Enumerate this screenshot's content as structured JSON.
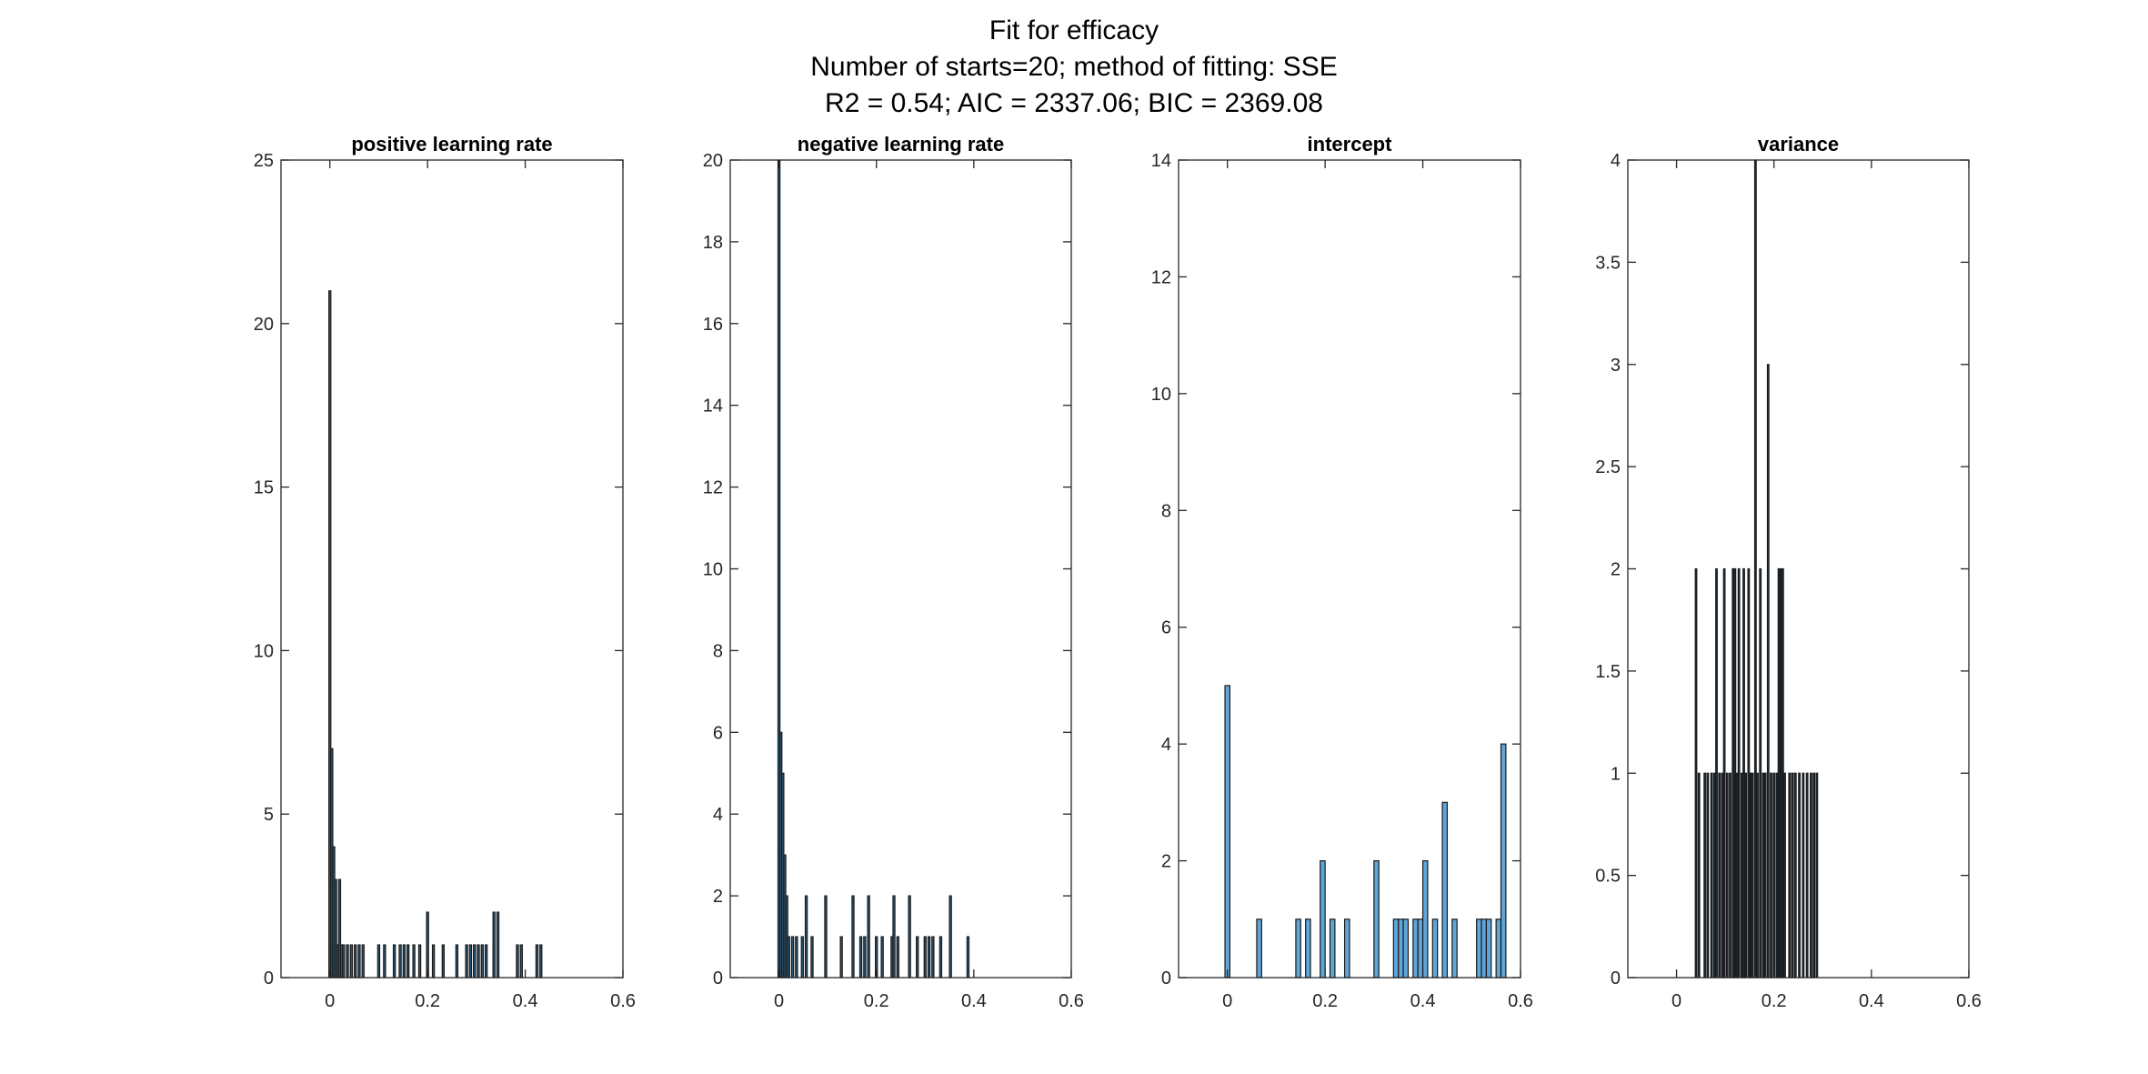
{
  "figure": {
    "title_lines": [
      "Fit for efficacy",
      "Number of starts=20; method of fitting: SSE",
      "R2 = 0.54; AIC = 2337.06; BIC = 2369.08"
    ]
  },
  "chart_data": [
    {
      "type": "bar",
      "title": "positive learning rate",
      "xlabel": "",
      "ylabel": "",
      "xlim": [
        -0.1,
        0.6
      ],
      "ylim": [
        0,
        25
      ],
      "xticks": [
        0,
        0.2,
        0.4,
        0.6
      ],
      "yticks": [
        0,
        5,
        10,
        15,
        20,
        25
      ],
      "xtick_labels": [
        "0",
        "0.2",
        "0.4",
        "0.6"
      ],
      "ytick_labels": [
        "0",
        "5",
        "10",
        "15",
        "20",
        "25"
      ],
      "bar_width": 0.004,
      "fill": "#2f5f7f",
      "grid": false,
      "x": [
        0.0,
        0.004,
        0.008,
        0.012,
        0.016,
        0.02,
        0.024,
        0.028,
        0.036,
        0.044,
        0.052,
        0.06,
        0.068,
        0.1,
        0.112,
        0.132,
        0.144,
        0.152,
        0.16,
        0.172,
        0.184,
        0.2,
        0.212,
        0.232,
        0.26,
        0.28,
        0.288,
        0.296,
        0.304,
        0.312,
        0.32,
        0.336,
        0.344,
        0.384,
        0.392,
        0.424,
        0.432
      ],
      "values": [
        21,
        7,
        4,
        3,
        1,
        3,
        1,
        1,
        1,
        1,
        1,
        1,
        1,
        1,
        1,
        1,
        1,
        1,
        1,
        1,
        1,
        2,
        1,
        1,
        1,
        1,
        1,
        1,
        1,
        1,
        1,
        2,
        2,
        1,
        1,
        1,
        1
      ]
    },
    {
      "type": "bar",
      "title": "negative learning rate",
      "xlabel": "",
      "ylabel": "",
      "xlim": [
        -0.1,
        0.6
      ],
      "ylim": [
        0,
        20
      ],
      "xticks": [
        0,
        0.2,
        0.4,
        0.6
      ],
      "yticks": [
        0,
        2,
        4,
        6,
        8,
        10,
        12,
        14,
        16,
        18,
        20
      ],
      "xtick_labels": [
        "0",
        "0.2",
        "0.4",
        "0.6"
      ],
      "ytick_labels": [
        "0",
        "2",
        "4",
        "6",
        "8",
        "10",
        "12",
        "14",
        "16",
        "18",
        "20"
      ],
      "bar_width": 0.004,
      "fill": "#2f5f7f",
      "grid": false,
      "x": [
        0.0,
        0.004,
        0.008,
        0.012,
        0.016,
        0.02,
        0.028,
        0.036,
        0.048,
        0.056,
        0.068,
        0.096,
        0.128,
        0.152,
        0.168,
        0.176,
        0.184,
        0.2,
        0.212,
        0.232,
        0.236,
        0.244,
        0.268,
        0.284,
        0.3,
        0.308,
        0.316,
        0.332,
        0.352,
        0.388
      ],
      "values": [
        20,
        6,
        5,
        3,
        2,
        1,
        1,
        1,
        1,
        2,
        1,
        2,
        1,
        2,
        1,
        1,
        2,
        1,
        1,
        1,
        2,
        1,
        2,
        1,
        1,
        1,
        1,
        1,
        2,
        1
      ]
    },
    {
      "type": "bar",
      "title": "intercept",
      "xlabel": "",
      "ylabel": "",
      "xlim": [
        -0.1,
        0.6
      ],
      "ylim": [
        0,
        14
      ],
      "xticks": [
        0,
        0.2,
        0.4,
        0.6
      ],
      "yticks": [
        0,
        2,
        4,
        6,
        8,
        10,
        12,
        14
      ],
      "xtick_labels": [
        "0",
        "0.2",
        "0.4",
        "0.6"
      ],
      "ytick_labels": [
        "0",
        "2",
        "4",
        "6",
        "8",
        "10",
        "12",
        "14"
      ],
      "bar_width": 0.01,
      "fill": "#5fa6da",
      "grid": false,
      "x": [
        0.0,
        0.065,
        0.145,
        0.165,
        0.195,
        0.215,
        0.245,
        0.305,
        0.345,
        0.355,
        0.365,
        0.385,
        0.395,
        0.405,
        0.425,
        0.445,
        0.465,
        0.515,
        0.525,
        0.535,
        0.555,
        0.565
      ],
      "values": [
        5,
        1,
        1,
        1,
        2,
        1,
        1,
        2,
        1,
        1,
        1,
        1,
        1,
        2,
        1,
        3,
        1,
        1,
        1,
        1,
        1,
        4
      ]
    },
    {
      "type": "bar",
      "title": "variance",
      "xlabel": "",
      "ylabel": "",
      "xlim": [
        -0.1,
        0.6
      ],
      "ylim": [
        0,
        4
      ],
      "xticks": [
        0,
        0.2,
        0.4,
        0.6
      ],
      "yticks": [
        0,
        0.5,
        1,
        1.5,
        2,
        2.5,
        3,
        3.5,
        4
      ],
      "xtick_labels": [
        "0",
        "0.2",
        "0.4",
        "0.6"
      ],
      "ytick_labels": [
        "0",
        "0.5",
        "1",
        "1.5",
        "2",
        "2.5",
        "3",
        "3.5",
        "4"
      ],
      "bar_width": 0.003,
      "fill": "#1f3d55",
      "grid": false,
      "x": [
        0.04,
        0.046,
        0.058,
        0.064,
        0.072,
        0.078,
        0.082,
        0.088,
        0.094,
        0.098,
        0.104,
        0.11,
        0.116,
        0.12,
        0.124,
        0.128,
        0.134,
        0.138,
        0.142,
        0.148,
        0.152,
        0.156,
        0.162,
        0.166,
        0.172,
        0.178,
        0.182,
        0.188,
        0.194,
        0.2,
        0.206,
        0.21,
        0.214,
        0.218,
        0.222,
        0.232,
        0.238,
        0.244,
        0.252,
        0.26,
        0.268,
        0.276,
        0.282,
        0.288
      ],
      "values": [
        2,
        1,
        1,
        1,
        1,
        1,
        2,
        1,
        1,
        2,
        1,
        1,
        2,
        2,
        1,
        2,
        1,
        2,
        1,
        2,
        1,
        1,
        4,
        1,
        2,
        1,
        1,
        3,
        1,
        1,
        1,
        2,
        2,
        2,
        1,
        1,
        1,
        1,
        1,
        1,
        1,
        1,
        1,
        1
      ]
    }
  ]
}
